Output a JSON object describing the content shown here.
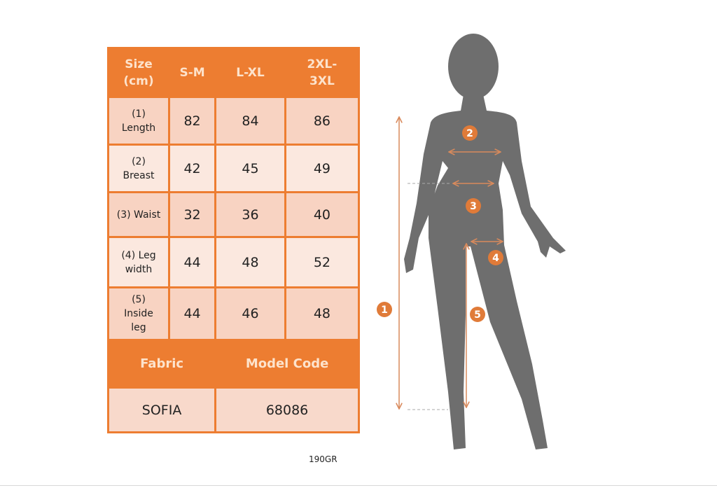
{
  "table": {
    "header": [
      "Size\n(cm)",
      "S-M",
      "L-XL",
      "2XL-\n3XL"
    ],
    "rows": [
      {
        "label": "(1)\nLength",
        "values": [
          "82",
          "84",
          "86"
        ]
      },
      {
        "label": "(2)\nBreast",
        "values": [
          "42",
          "45",
          "49"
        ]
      },
      {
        "label": "(3) Waist",
        "values": [
          "32",
          "36",
          "40"
        ]
      },
      {
        "label": "(4) Leg\nwidth",
        "values": [
          "44",
          "48",
          "52"
        ]
      },
      {
        "label": "(5)\nInside\nleg",
        "values": [
          "44",
          "46",
          "48"
        ]
      }
    ],
    "fabric_label": "Fabric",
    "model_code_label": "Model Code",
    "fabric_value": "SOFIA",
    "model_code_value": "68086"
  },
  "weight": "190GR",
  "figure": {
    "markers": [
      "1",
      "2",
      "3",
      "4",
      "5"
    ]
  },
  "colors": {
    "accent": "#ED7D31",
    "silhouette": "#6E6E6E",
    "arrow": "#D98A5C"
  }
}
